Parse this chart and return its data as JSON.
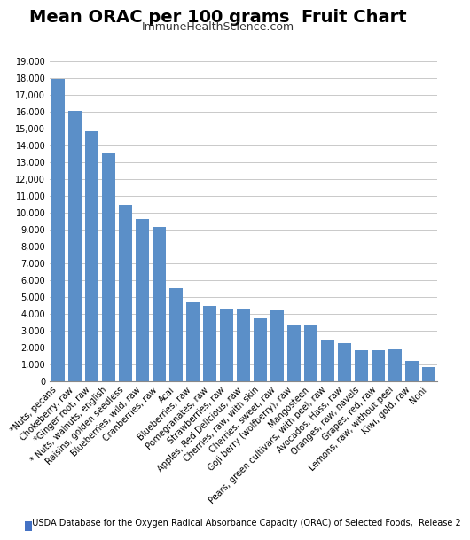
{
  "title": "Mean ORAC per 100 grams  Fruit Chart",
  "subtitle": "ImmuneHealthScience.com",
  "categories": [
    "*Nuts, pecans",
    "Chokeberry, raw",
    "*Ginger root, raw",
    "* Nuts, walnuts, english",
    "Raisins, golden seedless",
    "Blueberries, wild, raw",
    "Cranberries, raw",
    "Acai",
    "Blueberries, raw",
    "Pomegranates, raw",
    "Strawberries, raw",
    "Apples, Red Delicious, raw",
    "Cherries, raw, with skin",
    "Cherries, sweet, raw",
    "Goji berry (wolfberry), raw",
    "Mangosteen",
    "Pears, green cultivars, with peel, raw",
    "Avocados, Hass, raw",
    "Oranges, raw, navels",
    "Grapes, red, raw",
    "Lemons, raw, without peel",
    "Kiwi, gold, raw",
    "Noni"
  ],
  "values": [
    17940,
    16062,
    14840,
    13541,
    10450,
    9621,
    9150,
    5500,
    4669,
    4479,
    4302,
    4275,
    3747,
    4226,
    3290,
    3380,
    2490,
    2256,
    1819,
    1837,
    1900,
    1210,
    859
  ],
  "bar_color": "#5b8fc8",
  "legend_color": "#4472c4",
  "legend_text": "USDA Database for the Oxygen Radical Absorbance Capacity (ORAC) of Selected Foods,  Release 2",
  "ylim": [
    0,
    19000
  ],
  "yticks": [
    0,
    1000,
    2000,
    3000,
    4000,
    5000,
    6000,
    7000,
    8000,
    9000,
    10000,
    11000,
    12000,
    13000,
    14000,
    15000,
    16000,
    17000,
    18000,
    19000
  ],
  "background_color": "#ffffff",
  "grid_color": "#c0c0c0",
  "title_fontsize": 14,
  "subtitle_fontsize": 9,
  "tick_fontsize": 7,
  "legend_fontsize": 7
}
